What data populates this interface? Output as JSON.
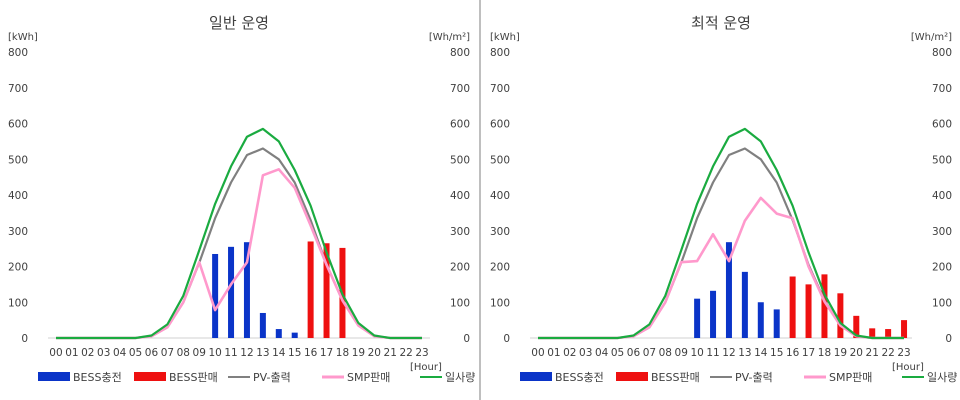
{
  "chart_data": [
    {
      "type": "bar+line",
      "title": "일반 운영",
      "y_left_unit": "[kWh]",
      "y_right_unit": "[Wh/m²]",
      "x_unit": "[Hour]",
      "ylim": [
        0,
        800
      ],
      "yticks": [
        0,
        100,
        200,
        300,
        400,
        500,
        600,
        700,
        800
      ],
      "categories": [
        "00",
        "01",
        "02",
        "03",
        "04",
        "05",
        "06",
        "07",
        "08",
        "09",
        "10",
        "11",
        "12",
        "13",
        "14",
        "15",
        "16",
        "17",
        "18",
        "19",
        "20",
        "21",
        "22",
        "23"
      ],
      "grid": false,
      "legend_position": "bottom",
      "series": [
        {
          "name": "BESS충전",
          "kind": "bar",
          "color": "#0a34c8",
          "values": [
            0,
            0,
            0,
            0,
            0,
            0,
            0,
            0,
            0,
            0,
            235,
            255,
            268,
            70,
            25,
            15,
            0,
            0,
            0,
            0,
            0,
            0,
            0,
            0
          ]
        },
        {
          "name": "BESS판매",
          "kind": "bar",
          "color": "#ee1010",
          "values": [
            0,
            0,
            0,
            0,
            0,
            0,
            0,
            0,
            0,
            0,
            0,
            0,
            0,
            0,
            0,
            0,
            270,
            265,
            252,
            0,
            0,
            0,
            0,
            0
          ]
        },
        {
          "name": "PV-출력",
          "kind": "line",
          "color": "#808080",
          "values": [
            0,
            0,
            0,
            0,
            0,
            0,
            5,
            30,
            100,
            210,
            335,
            435,
            512,
            530,
            500,
            435,
            330,
            205,
            105,
            35,
            5,
            0,
            0,
            0
          ]
        },
        {
          "name": "SMP판매",
          "kind": "line",
          "color": "#ff99cc",
          "values": [
            0,
            0,
            0,
            0,
            0,
            0,
            5,
            30,
            100,
            212,
            78,
            150,
            212,
            455,
            472,
            420,
            315,
            205,
            105,
            35,
            5,
            0,
            0,
            0
          ]
        },
        {
          "name": "일사량",
          "kind": "line",
          "color": "#1aab40",
          "values": [
            0,
            0,
            0,
            0,
            0,
            0,
            7,
            38,
            118,
            245,
            375,
            480,
            563,
            585,
            550,
            470,
            370,
            240,
            122,
            42,
            7,
            0,
            0,
            0
          ]
        }
      ]
    },
    {
      "type": "bar+line",
      "title": "최적 운영",
      "y_left_unit": "[kWh]",
      "y_right_unit": "[Wh/m²]",
      "x_unit": "[Hour]",
      "ylim": [
        0,
        800
      ],
      "yticks": [
        0,
        100,
        200,
        300,
        400,
        500,
        600,
        700,
        800
      ],
      "categories": [
        "00",
        "01",
        "02",
        "03",
        "04",
        "05",
        "06",
        "07",
        "08",
        "09",
        "10",
        "11",
        "12",
        "13",
        "14",
        "15",
        "16",
        "17",
        "18",
        "19",
        "20",
        "21",
        "22",
        "23"
      ],
      "grid": false,
      "legend_position": "bottom",
      "series": [
        {
          "name": "BESS충전",
          "kind": "bar",
          "color": "#0a34c8",
          "values": [
            0,
            0,
            0,
            0,
            0,
            0,
            0,
            0,
            0,
            0,
            110,
            132,
            268,
            185,
            100,
            80,
            0,
            0,
            0,
            0,
            0,
            0,
            0,
            0
          ]
        },
        {
          "name": "BESS판매",
          "kind": "bar",
          "color": "#ee1010",
          "values": [
            0,
            0,
            0,
            0,
            0,
            0,
            0,
            0,
            0,
            0,
            0,
            0,
            0,
            0,
            0,
            0,
            172,
            150,
            178,
            125,
            62,
            27,
            25,
            50
          ]
        },
        {
          "name": "PV-출력",
          "kind": "line",
          "color": "#808080",
          "values": [
            0,
            0,
            0,
            0,
            0,
            0,
            5,
            30,
            100,
            210,
            335,
            435,
            512,
            530,
            500,
            435,
            330,
            205,
            105,
            35,
            5,
            0,
            0,
            0
          ]
        },
        {
          "name": "SMP판매",
          "kind": "line",
          "color": "#ff99cc",
          "values": [
            0,
            0,
            0,
            0,
            0,
            0,
            5,
            30,
            100,
            212,
            215,
            290,
            215,
            328,
            392,
            348,
            335,
            200,
            102,
            35,
            5,
            0,
            0,
            0
          ]
        },
        {
          "name": "일사량",
          "kind": "line",
          "color": "#1aab40",
          "values": [
            0,
            0,
            0,
            0,
            0,
            0,
            7,
            38,
            118,
            245,
            375,
            480,
            563,
            585,
            550,
            470,
            370,
            240,
            122,
            42,
            7,
            0,
            0,
            0
          ]
        }
      ]
    }
  ]
}
